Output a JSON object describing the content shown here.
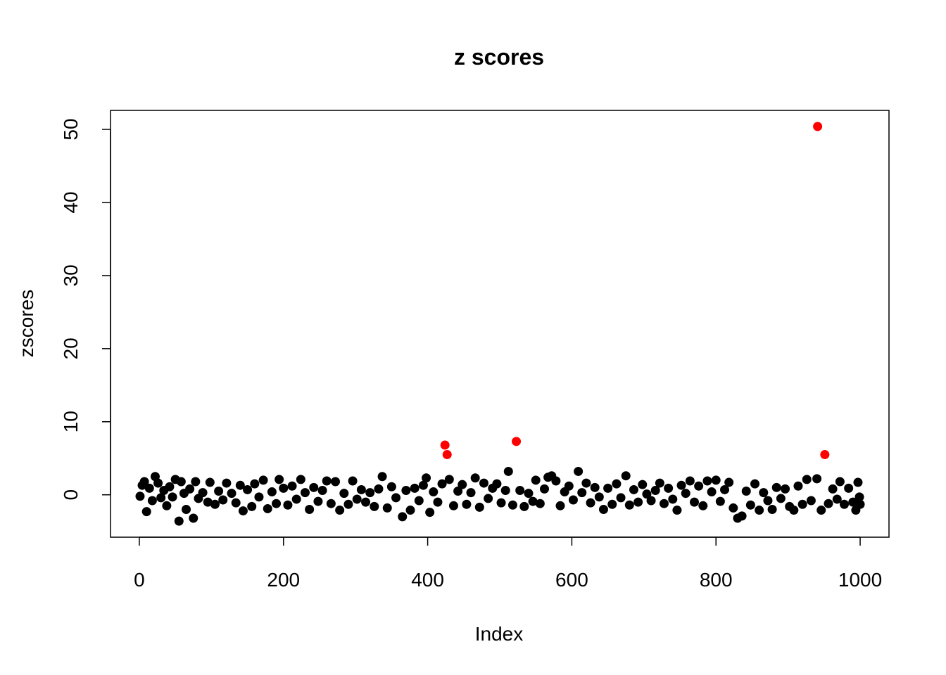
{
  "chart_data": {
    "type": "scatter",
    "title": "z scores",
    "xlabel": "Index",
    "ylabel": "zscores",
    "xlim": [
      -40,
      1040
    ],
    "ylim": [
      -5.8,
      52.6
    ],
    "xticks": [
      0,
      200,
      400,
      600,
      800,
      1000
    ],
    "yticks": [
      0,
      10,
      20,
      30,
      40,
      50
    ],
    "grid": false,
    "legend": "none",
    "colors": {
      "normal": "#000000",
      "outlier": "#ff0000"
    },
    "series": [
      {
        "color": "#000000",
        "points": [
          [
            1,
            -0.2
          ],
          [
            4,
            1.3
          ],
          [
            7,
            1.8
          ],
          [
            10,
            -2.3
          ],
          [
            14,
            0.9
          ],
          [
            18,
            -0.8
          ],
          [
            22,
            2.5
          ],
          [
            26,
            1.6
          ],
          [
            30,
            -0.4
          ],
          [
            34,
            0.6
          ],
          [
            38,
            -1.5
          ],
          [
            42,
            1.1
          ],
          [
            46,
            -0.3
          ],
          [
            50,
            2.1
          ],
          [
            55,
            -3.6
          ],
          [
            58,
            1.8
          ],
          [
            62,
            0.2
          ],
          [
            65,
            -2.0
          ],
          [
            70,
            0.8
          ],
          [
            75,
            -3.2
          ],
          [
            78,
            1.8
          ],
          [
            82,
            -0.5
          ],
          [
            88,
            0.3
          ],
          [
            95,
            -1.0
          ],
          [
            98,
            1.7
          ],
          [
            105,
            -1.3
          ],
          [
            110,
            0.5
          ],
          [
            116,
            -0.7
          ],
          [
            121,
            1.6
          ],
          [
            128,
            0.2
          ],
          [
            134,
            -1.1
          ],
          [
            140,
            1.3
          ],
          [
            144,
            -2.2
          ],
          [
            150,
            0.7
          ],
          [
            156,
            -1.6
          ],
          [
            160,
            1.5
          ],
          [
            166,
            -0.3
          ],
          [
            172,
            2.0
          ],
          [
            178,
            -1.9
          ],
          [
            184,
            0.4
          ],
          [
            190,
            -1.2
          ],
          [
            194,
            2.1
          ],
          [
            200,
            0.9
          ],
          [
            206,
            -1.4
          ],
          [
            212,
            1.2
          ],
          [
            218,
            -0.6
          ],
          [
            224,
            2.1
          ],
          [
            230,
            0.3
          ],
          [
            236,
            -2.0
          ],
          [
            242,
            1.0
          ],
          [
            248,
            -0.9
          ],
          [
            254,
            0.6
          ],
          [
            260,
            1.9
          ],
          [
            266,
            -1.2
          ],
          [
            272,
            1.8
          ],
          [
            278,
            -2.1
          ],
          [
            284,
            0.2
          ],
          [
            290,
            -1.3
          ],
          [
            296,
            1.9
          ],
          [
            302,
            -0.6
          ],
          [
            308,
            0.7
          ],
          [
            314,
            -1.0
          ],
          [
            320,
            0.3
          ],
          [
            326,
            -1.6
          ],
          [
            332,
            0.8
          ],
          [
            337,
            2.5
          ],
          [
            344,
            -1.8
          ],
          [
            350,
            1.1
          ],
          [
            356,
            -0.4
          ],
          [
            365,
            -3.0
          ],
          [
            370,
            0.6
          ],
          [
            376,
            -2.1
          ],
          [
            382,
            0.9
          ],
          [
            388,
            -0.8
          ],
          [
            394,
            1.3
          ],
          [
            398,
            2.3
          ],
          [
            403,
            -2.4
          ],
          [
            408,
            0.4
          ],
          [
            414,
            -1.0
          ],
          [
            420,
            1.5
          ],
          [
            430,
            2.1
          ],
          [
            436,
            -1.5
          ],
          [
            442,
            0.5
          ],
          [
            448,
            1.4
          ],
          [
            454,
            -1.3
          ],
          [
            460,
            0.3
          ],
          [
            466,
            2.3
          ],
          [
            472,
            -1.7
          ],
          [
            478,
            1.6
          ],
          [
            484,
            -0.5
          ],
          [
            490,
            0.9
          ],
          [
            496,
            1.5
          ],
          [
            502,
            -1.1
          ],
          [
            508,
            0.6
          ],
          [
            512,
            3.2
          ],
          [
            518,
            -1.4
          ],
          [
            528,
            0.6
          ],
          [
            534,
            -1.6
          ],
          [
            540,
            0.2
          ],
          [
            546,
            -0.9
          ],
          [
            550,
            2.0
          ],
          [
            556,
            -1.2
          ],
          [
            562,
            0.8
          ],
          [
            567,
            2.4
          ],
          [
            572,
            2.6
          ],
          [
            578,
            1.9
          ],
          [
            584,
            -1.5
          ],
          [
            590,
            0.4
          ],
          [
            596,
            1.2
          ],
          [
            602,
            -0.7
          ],
          [
            609,
            3.2
          ],
          [
            614,
            0.3
          ],
          [
            620,
            1.6
          ],
          [
            626,
            -1.1
          ],
          [
            632,
            1.0
          ],
          [
            638,
            -0.3
          ],
          [
            644,
            -2.0
          ],
          [
            650,
            0.9
          ],
          [
            656,
            -1.3
          ],
          [
            662,
            1.5
          ],
          [
            668,
            -0.4
          ],
          [
            675,
            2.6
          ],
          [
            680,
            -1.4
          ],
          [
            686,
            0.7
          ],
          [
            692,
            -1.0
          ],
          [
            698,
            1.4
          ],
          [
            704,
            0.1
          ],
          [
            710,
            -0.8
          ],
          [
            716,
            0.6
          ],
          [
            722,
            1.6
          ],
          [
            728,
            -1.2
          ],
          [
            734,
            0.9
          ],
          [
            740,
            -0.6
          ],
          [
            746,
            -2.1
          ],
          [
            752,
            1.3
          ],
          [
            758,
            0.2
          ],
          [
            764,
            1.9
          ],
          [
            770,
            -1.0
          ],
          [
            776,
            1.2
          ],
          [
            782,
            -1.5
          ],
          [
            788,
            1.9
          ],
          [
            794,
            0.4
          ],
          [
            800,
            2.0
          ],
          [
            806,
            -0.9
          ],
          [
            812,
            0.7
          ],
          [
            818,
            1.7
          ],
          [
            824,
            -1.8
          ],
          [
            830,
            -3.2
          ],
          [
            836,
            -2.9
          ],
          [
            842,
            0.5
          ],
          [
            848,
            -1.4
          ],
          [
            854,
            1.5
          ],
          [
            860,
            -2.1
          ],
          [
            866,
            0.3
          ],
          [
            872,
            -0.8
          ],
          [
            878,
            -2.0
          ],
          [
            884,
            1.0
          ],
          [
            890,
            -0.5
          ],
          [
            896,
            0.8
          ],
          [
            902,
            -1.6
          ],
          [
            908,
            -2.1
          ],
          [
            914,
            1.2
          ],
          [
            920,
            -1.3
          ],
          [
            926,
            2.1
          ],
          [
            932,
            -0.8
          ],
          [
            940,
            2.2
          ],
          [
            946,
            -2.1
          ],
          [
            956,
            -1.2
          ],
          [
            962,
            0.8
          ],
          [
            968,
            -0.6
          ],
          [
            972,
            1.8
          ],
          [
            978,
            -1.3
          ],
          [
            984,
            0.9
          ],
          [
            990,
            -1.0
          ],
          [
            994,
            -2.1
          ],
          [
            997,
            1.7
          ],
          [
            999,
            -0.3
          ],
          [
            1000,
            -1.3
          ]
        ]
      },
      {
        "color": "#ff0000",
        "points": [
          [
            424,
            6.8
          ],
          [
            427,
            5.5
          ],
          [
            523,
            7.3
          ],
          [
            941,
            50.4
          ],
          [
            951,
            5.5
          ]
        ]
      }
    ]
  }
}
